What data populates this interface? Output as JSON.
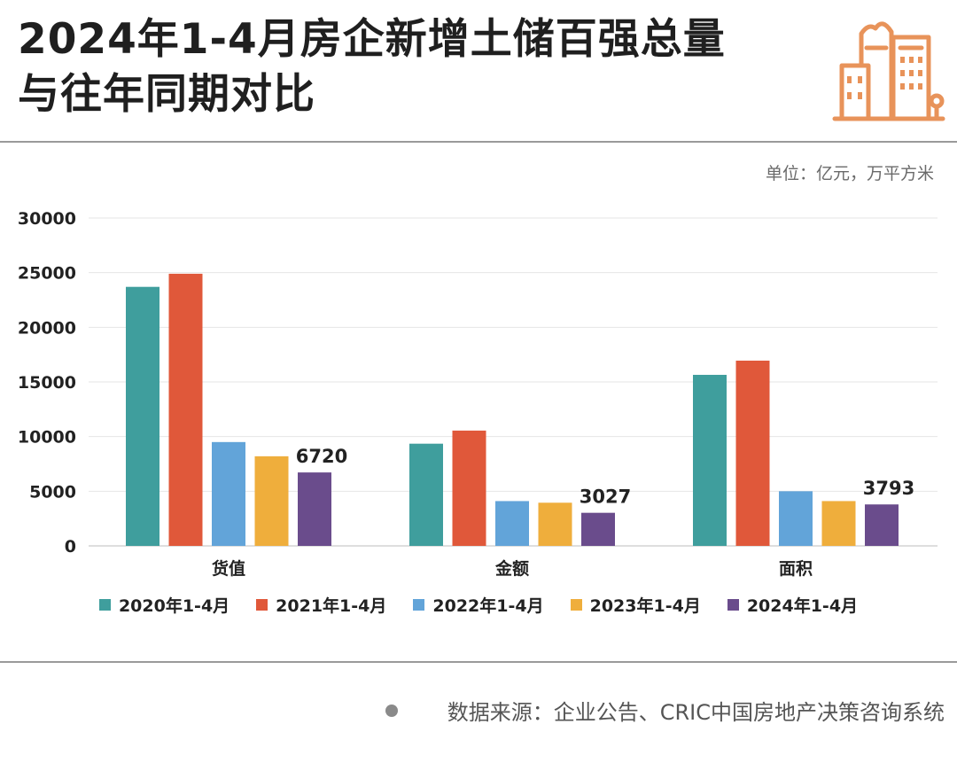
{
  "header": {
    "title_line1": "2024年1-4月房企新增土储百强总量",
    "title_line2": "与往年同期对比",
    "unit": "单位：亿元，万平方米"
  },
  "logo": {
    "icon": "building-icon",
    "color": "#E8935A"
  },
  "chart_data": {
    "type": "bar",
    "categories": [
      "货值",
      "金额",
      "面积"
    ],
    "series": [
      {
        "name": "2020年1-4月",
        "color": "#3F9E9D",
        "values": [
          23700,
          9350,
          15650
        ]
      },
      {
        "name": "2021年1-4月",
        "color": "#E0583A",
        "values": [
          24900,
          10550,
          16950
        ]
      },
      {
        "name": "2022年1-4月",
        "color": "#62A4D9",
        "values": [
          9500,
          4100,
          5000
        ]
      },
      {
        "name": "2023年1-4月",
        "color": "#EFAE3C",
        "values": [
          8200,
          3950,
          4100
        ]
      },
      {
        "name": "2024年1-4月",
        "color": "#6A4C8C",
        "values": [
          6720,
          3027,
          3793
        ]
      }
    ],
    "data_labels": [
      "6720",
      "3027",
      "3793"
    ],
    "yticks": [
      "0",
      "5000",
      "10000",
      "15000",
      "20000",
      "25000",
      "30000"
    ],
    "ylim": [
      0,
      30000
    ],
    "grid": true,
    "legend_position": "bottom"
  },
  "footer": {
    "source": "数据来源：企业公告、CRIC中国房地产决策咨询系统"
  }
}
